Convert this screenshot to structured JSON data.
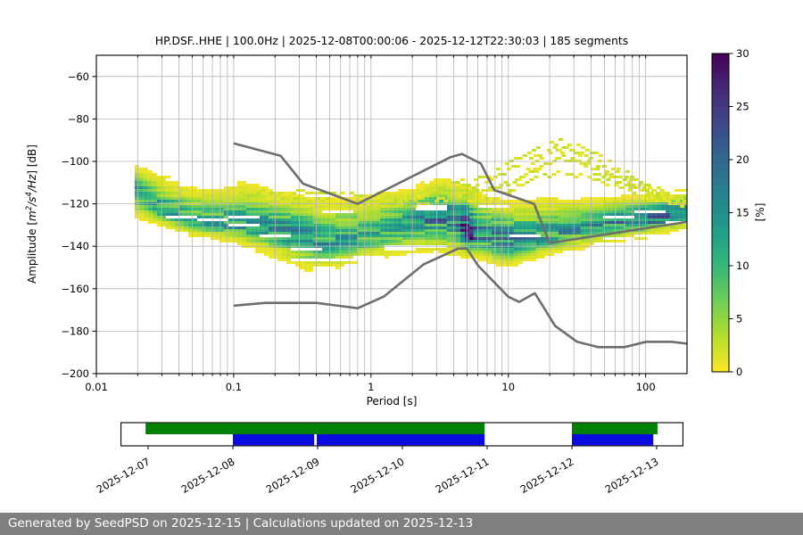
{
  "page": {
    "footer_text": "Generated by SeedPSD on 2025-12-15 | Calculations updated on 2025-12-13"
  },
  "chart_data": {
    "type": "heatmap",
    "title": "HP.DSF..HHE | 100.0Hz | 2025-12-08T00:00:06 - 2025-12-12T22:30:03 | 185 segments",
    "xlabel": "Period [s]",
    "ylabel": "Amplitude [m^2/s^4/Hz] [dB]",
    "ylabel_segments": [
      {
        "t": "Amplitude [",
        "i": 0,
        "s": 0
      },
      {
        "t": "m",
        "i": 1,
        "s": 0
      },
      {
        "t": "2",
        "i": 1,
        "s": 1
      },
      {
        "t": "/",
        "i": 1,
        "s": 0
      },
      {
        "t": "s",
        "i": 1,
        "s": 0
      },
      {
        "t": "4",
        "i": 1,
        "s": 1
      },
      {
        "t": "/",
        "i": 1,
        "s": 0
      },
      {
        "t": "Hz",
        "i": 1,
        "s": 0
      },
      {
        "t": "] [dB]",
        "i": 0,
        "s": 0
      }
    ],
    "xscale": "log",
    "xlim": [
      0.01,
      200
    ],
    "ylim": [
      -200,
      -50
    ],
    "xticks": {
      "values": [
        0.01,
        0.1,
        1,
        10,
        100
      ],
      "labels": [
        "0.01",
        "0.1",
        "1",
        "10",
        "100"
      ]
    },
    "yticks": {
      "values": [
        -60,
        -80,
        -100,
        -120,
        -140,
        -160,
        -180,
        -200
      ],
      "labels": [
        "−60",
        "−80",
        "−100",
        "−120",
        "−140",
        "−160",
        "−180",
        "−200"
      ]
    },
    "grid": true,
    "colorbar": {
      "label": "[%]",
      "min": 0,
      "max": 30,
      "ticks": [
        0,
        5,
        10,
        15,
        20,
        25,
        30
      ],
      "tick_labels": [
        "0",
        "5",
        "10",
        "15",
        "20",
        "25",
        "30"
      ],
      "colormap": "viridis reversed (0%=yellow #fde725, 30%=dark purple #440154)"
    },
    "histogram": {
      "period_range_s": [
        0.019,
        195
      ],
      "mode_curve_period_db": [
        [
          0.019,
          -112
        ],
        [
          0.03,
          -122
        ],
        [
          0.05,
          -128
        ],
        [
          0.1,
          -129
        ],
        [
          0.2,
          -131
        ],
        [
          0.3,
          -134
        ],
        [
          0.45,
          -138
        ],
        [
          0.7,
          -137.5
        ],
        [
          1.0,
          -135.5
        ],
        [
          1.5,
          -132
        ],
        [
          2.2,
          -128
        ],
        [
          3.2,
          -124.5
        ],
        [
          4.0,
          -127
        ],
        [
          5.1,
          -132.5
        ],
        [
          7,
          -135
        ],
        [
          10,
          -137
        ],
        [
          14,
          -136
        ],
        [
          20,
          -134
        ],
        [
          30,
          -131.5
        ],
        [
          50,
          -129
        ],
        [
          80,
          -127
        ],
        [
          120,
          -125.5
        ],
        [
          190,
          -123.5
        ]
      ],
      "upper_envelope_period_db": [
        [
          0.019,
          -104
        ],
        [
          0.03,
          -110
        ],
        [
          0.05,
          -115.5
        ],
        [
          0.08,
          -116
        ],
        [
          0.12,
          -114
        ],
        [
          0.2,
          -118
        ],
        [
          0.35,
          -121
        ],
        [
          0.6,
          -122
        ],
        [
          1.0,
          -119
        ],
        [
          1.6,
          -117
        ],
        [
          2.5,
          -114
        ],
        [
          3.5,
          -112
        ],
        [
          5,
          -116
        ],
        [
          7,
          -120
        ],
        [
          10,
          -123
        ],
        [
          15,
          -122
        ],
        [
          25,
          -121
        ],
        [
          50,
          -120
        ],
        [
          100,
          -118.5
        ],
        [
          190,
          -115.5
        ]
      ],
      "lower_envelope_period_db": [
        [
          0.019,
          -122
        ],
        [
          0.03,
          -128
        ],
        [
          0.05,
          -133
        ],
        [
          0.1,
          -136
        ],
        [
          0.2,
          -141
        ],
        [
          0.35,
          -147
        ],
        [
          0.55,
          -147
        ],
        [
          0.8,
          -144.5
        ],
        [
          1.2,
          -142
        ],
        [
          2,
          -139
        ],
        [
          3,
          -137.5
        ],
        [
          4,
          -140
        ],
        [
          5.5,
          -142
        ],
        [
          8,
          -144.5
        ],
        [
          11,
          -145.5
        ],
        [
          16,
          -143
        ],
        [
          25,
          -140
        ],
        [
          40,
          -137
        ],
        [
          70,
          -134
        ],
        [
          120,
          -132
        ],
        [
          190,
          -129.5
        ]
      ],
      "peak_percent_period_pct": [
        [
          0.019,
          13
        ],
        [
          0.04,
          12
        ],
        [
          0.08,
          12
        ],
        [
          0.15,
          13
        ],
        [
          0.3,
          15
        ],
        [
          0.5,
          13
        ],
        [
          0.8,
          11
        ],
        [
          1.2,
          11
        ],
        [
          2,
          13
        ],
        [
          3.2,
          17
        ],
        [
          4.2,
          14
        ],
        [
          5.1,
          28
        ],
        [
          6,
          16
        ],
        [
          8,
          15
        ],
        [
          10,
          16
        ],
        [
          14,
          14
        ],
        [
          20,
          13
        ],
        [
          30,
          13
        ],
        [
          50,
          15
        ],
        [
          80,
          17
        ],
        [
          120,
          19
        ],
        [
          190,
          20
        ]
      ],
      "hotspot": {
        "period": 5.1,
        "db": -132.5,
        "percent": 30
      }
    },
    "high_noise_event_curves_period_db": [
      [
        [
          0.1,
          -113.5
        ],
        [
          0.3,
          -114
        ],
        [
          0.8,
          -115
        ],
        [
          1.5,
          -116
        ]
      ],
      [
        [
          0.15,
          -117
        ],
        [
          0.5,
          -118
        ],
        [
          1,
          -118.5
        ]
      ],
      [
        [
          0.8,
          -120
        ],
        [
          2,
          -117
        ],
        [
          3.5,
          -110
        ],
        [
          5,
          -108
        ],
        [
          7,
          -106
        ],
        [
          10,
          -100
        ],
        [
          15,
          -93.5
        ],
        [
          22,
          -90
        ],
        [
          30,
          -91
        ],
        [
          45,
          -97
        ],
        [
          70,
          -105
        ],
        [
          110,
          -112
        ],
        [
          190,
          -117
        ]
      ],
      [
        [
          1.5,
          -119
        ],
        [
          3,
          -114
        ],
        [
          4.5,
          -111
        ],
        [
          6.5,
          -110
        ],
        [
          9,
          -105
        ],
        [
          14,
          -98
        ],
        [
          20,
          -94
        ],
        [
          28,
          -94
        ],
        [
          40,
          -100
        ],
        [
          65,
          -108
        ],
        [
          100,
          -114
        ],
        [
          190,
          -119
        ]
      ],
      [
        [
          2,
          -120
        ],
        [
          4,
          -116
        ],
        [
          6,
          -114
        ],
        [
          9,
          -111
        ],
        [
          14,
          -104
        ],
        [
          22,
          -99
        ],
        [
          32,
          -99
        ],
        [
          50,
          -106
        ],
        [
          90,
          -113
        ],
        [
          150,
          -118
        ],
        [
          190,
          -120
        ]
      ],
      [
        [
          3,
          -117
        ],
        [
          5,
          -113
        ],
        [
          8,
          -112
        ],
        [
          12,
          -107
        ],
        [
          18,
          -101
        ],
        [
          26,
          -97
        ],
        [
          38,
          -103
        ],
        [
          60,
          -110
        ],
        [
          120,
          -116
        ],
        [
          190,
          -120
        ]
      ],
      [
        [
          5,
          -119
        ],
        [
          9,
          -115
        ],
        [
          15,
          -108
        ],
        [
          25,
          -104
        ],
        [
          40,
          -108
        ],
        [
          80,
          -114
        ],
        [
          150,
          -119
        ]
      ],
      [
        [
          10,
          -112
        ],
        [
          18,
          -96
        ],
        [
          25,
          -92
        ],
        [
          35,
          -96
        ],
        [
          55,
          -103
        ],
        [
          90,
          -110
        ],
        [
          140,
          -115
        ],
        [
          190,
          -118
        ]
      ]
    ],
    "noise_models": {
      "name": "Peterson NHNM / NLNM",
      "color": "#6e6e6e",
      "nhnm_period_db": [
        [
          0.1,
          -91.5
        ],
        [
          0.22,
          -97.4
        ],
        [
          0.32,
          -110.5
        ],
        [
          0.8,
          -120.0
        ],
        [
          3.8,
          -98.0
        ],
        [
          4.6,
          -96.5
        ],
        [
          6.3,
          -101.0
        ],
        [
          7.9,
          -113.5
        ],
        [
          15.4,
          -120.0
        ],
        [
          20.0,
          -138.5
        ],
        [
          354.8,
          -126.0
        ]
      ],
      "nlnm_period_db": [
        [
          0.1,
          -168.0
        ],
        [
          0.17,
          -166.7
        ],
        [
          0.4,
          -166.7
        ],
        [
          0.8,
          -169.2
        ],
        [
          1.24,
          -163.7
        ],
        [
          2.4,
          -148.6
        ],
        [
          4.3,
          -141.1
        ],
        [
          5.0,
          -141.1
        ],
        [
          6.0,
          -149.0
        ],
        [
          10.0,
          -163.8
        ],
        [
          12.0,
          -166.2
        ],
        [
          15.6,
          -162.1
        ],
        [
          21.9,
          -177.5
        ],
        [
          31.6,
          -185.0
        ],
        [
          45.0,
          -187.5
        ],
        [
          70.0,
          -187.5
        ],
        [
          101.0,
          -185.0
        ],
        [
          154.0,
          -185.0
        ],
        [
          328.0,
          -187.5
        ]
      ]
    },
    "timeline": {
      "tick_labels": [
        "2025-12-07",
        "2025-12-08",
        "2025-12-09",
        "2025-12-10",
        "2025-12-11",
        "2025-12-12",
        "2025-12-13"
      ],
      "note_day0": "2025-12-07",
      "axis_range_days": [
        -0.32,
        6.31
      ],
      "green_segments_days": [
        [
          -0.03,
          3.97
        ],
        [
          5.0,
          6.01
        ]
      ],
      "blue_segments_days": [
        [
          1.0,
          1.96
        ],
        [
          1.99,
          3.97
        ],
        [
          5.0,
          5.96
        ]
      ],
      "green_color": "#008000",
      "blue_color": "#0b0be0"
    }
  }
}
